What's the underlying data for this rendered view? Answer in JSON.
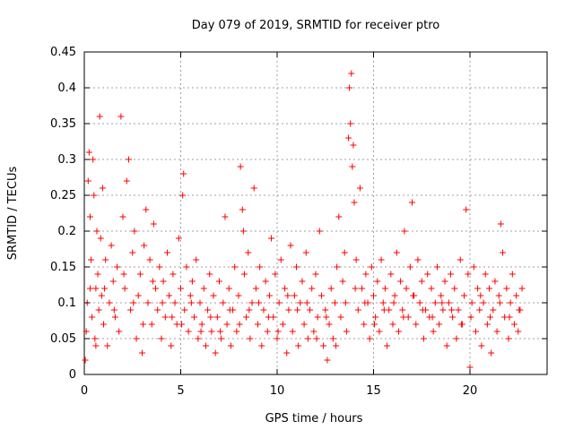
{
  "chart_data": {
    "type": "scatter",
    "title": "Day 079 of 2019, SRMTID for receiver ptro",
    "xlabel": "GPS time / hours",
    "ylabel": "SRMTID / TECUs",
    "xlim": [
      0,
      24
    ],
    "ylim": [
      0,
      0.45
    ],
    "x_ticks": [
      0,
      5,
      10,
      15,
      20
    ],
    "x_tick_labels": [
      "0",
      "5",
      "10",
      "15",
      "20"
    ],
    "y_ticks": [
      0,
      0.05,
      0.1,
      0.15,
      0.2,
      0.25,
      0.3,
      0.35,
      0.4,
      0.45
    ],
    "y_tick_labels": [
      "0",
      "0.05",
      "0.1",
      "0.15",
      "0.2",
      "0.25",
      "0.3",
      "0.35",
      "0.4",
      "0.45"
    ],
    "grid": true,
    "marker": "plus",
    "colors": {
      "marker": "#ff0000",
      "grid": "#a0a0a0",
      "axis": "#000000"
    },
    "series": [
      {
        "name": "SRMTID",
        "points": [
          [
            0.05,
            0.02
          ],
          [
            0.1,
            0.06
          ],
          [
            0.15,
            0.1
          ],
          [
            0.2,
            0.27
          ],
          [
            0.25,
            0.31
          ],
          [
            0.3,
            0.22
          ],
          [
            0.35,
            0.16
          ],
          [
            0.4,
            0.08
          ],
          [
            0.45,
            0.3
          ],
          [
            0.5,
            0.25
          ],
          [
            0.55,
            0.05
          ],
          [
            0.6,
            0.12
          ],
          [
            0.65,
            0.2
          ],
          [
            0.7,
            0.14
          ],
          [
            0.75,
            0.09
          ],
          [
            0.8,
            0.36
          ],
          [
            0.85,
            0.19
          ],
          [
            0.9,
            0.11
          ],
          [
            0.95,
            0.26
          ],
          [
            1.0,
            0.07
          ],
          [
            1.1,
            0.16
          ],
          [
            1.2,
            0.04
          ],
          [
            1.3,
            0.1
          ],
          [
            1.4,
            0.18
          ],
          [
            1.5,
            0.13
          ],
          [
            1.6,
            0.08
          ],
          [
            1.7,
            0.15
          ],
          [
            1.8,
            0.06
          ],
          [
            1.9,
            0.36
          ],
          [
            2.0,
            0.22
          ],
          [
            2.1,
            0.12
          ],
          [
            2.2,
            0.27
          ],
          [
            2.3,
            0.3
          ],
          [
            2.4,
            0.09
          ],
          [
            2.5,
            0.17
          ],
          [
            2.6,
            0.2
          ],
          [
            2.7,
            0.05
          ],
          [
            2.8,
            0.11
          ],
          [
            2.9,
            0.14
          ],
          [
            3.0,
            0.03
          ],
          [
            3.1,
            0.18
          ],
          [
            3.2,
            0.23
          ],
          [
            3.3,
            0.1
          ],
          [
            3.4,
            0.16
          ],
          [
            3.5,
            0.07
          ],
          [
            3.6,
            0.21
          ],
          [
            3.7,
            0.12
          ],
          [
            3.8,
            0.09
          ],
          [
            3.9,
            0.15
          ],
          [
            4.0,
            0.05
          ],
          [
            4.1,
            0.13
          ],
          [
            4.2,
            0.08
          ],
          [
            4.3,
            0.17
          ],
          [
            4.4,
            0.11
          ],
          [
            4.5,
            0.04
          ],
          [
            4.6,
            0.14
          ],
          [
            4.7,
            0.1
          ],
          [
            4.8,
            0.07
          ],
          [
            4.9,
            0.19
          ],
          [
            5.0,
            0.12
          ],
          [
            5.1,
            0.25
          ],
          [
            5.15,
            0.28
          ],
          [
            5.2,
            0.09
          ],
          [
            5.3,
            0.15
          ],
          [
            5.4,
            0.06
          ],
          [
            5.5,
            0.11
          ],
          [
            5.6,
            0.13
          ],
          [
            5.7,
            0.08
          ],
          [
            5.8,
            0.16
          ],
          [
            5.9,
            0.05
          ],
          [
            6.0,
            0.1
          ],
          [
            6.1,
            0.07
          ],
          [
            6.2,
            0.12
          ],
          [
            6.3,
            0.04
          ],
          [
            6.4,
            0.09
          ],
          [
            6.5,
            0.14
          ],
          [
            6.6,
            0.06
          ],
          [
            6.7,
            0.11
          ],
          [
            6.8,
            0.03
          ],
          [
            6.9,
            0.08
          ],
          [
            7.0,
            0.13
          ],
          [
            7.1,
            0.05
          ],
          [
            7.2,
            0.1
          ],
          [
            7.3,
            0.22
          ],
          [
            7.4,
            0.07
          ],
          [
            7.5,
            0.12
          ],
          [
            7.6,
            0.04
          ],
          [
            7.7,
            0.09
          ],
          [
            7.8,
            0.15
          ],
          [
            7.9,
            0.06
          ],
          [
            8.0,
            0.11
          ],
          [
            8.1,
            0.29
          ],
          [
            8.2,
            0.23
          ],
          [
            8.25,
            0.2
          ],
          [
            8.3,
            0.14
          ],
          [
            8.4,
            0.08
          ],
          [
            8.5,
            0.17
          ],
          [
            8.6,
            0.05
          ],
          [
            8.7,
            0.1
          ],
          [
            8.8,
            0.26
          ],
          [
            8.9,
            0.12
          ],
          [
            9.0,
            0.07
          ],
          [
            9.1,
            0.15
          ],
          [
            9.2,
            0.04
          ],
          [
            9.3,
            0.09
          ],
          [
            9.4,
            0.13
          ],
          [
            9.5,
            0.06
          ],
          [
            9.6,
            0.11
          ],
          [
            9.7,
            0.19
          ],
          [
            9.8,
            0.08
          ],
          [
            9.9,
            0.14
          ],
          [
            10.0,
            0.05
          ],
          [
            10.1,
            0.1
          ],
          [
            10.2,
            0.16
          ],
          [
            10.3,
            0.07
          ],
          [
            10.4,
            0.12
          ],
          [
            10.5,
            0.03
          ],
          [
            10.6,
            0.09
          ],
          [
            10.7,
            0.18
          ],
          [
            10.8,
            0.06
          ],
          [
            10.9,
            0.11
          ],
          [
            11.0,
            0.15
          ],
          [
            11.1,
            0.04
          ],
          [
            11.2,
            0.1
          ],
          [
            11.3,
            0.13
          ],
          [
            11.4,
            0.07
          ],
          [
            11.5,
            0.17
          ],
          [
            11.6,
            0.05
          ],
          [
            11.7,
            0.09
          ],
          [
            11.8,
            0.12
          ],
          [
            11.9,
            0.06
          ],
          [
            12.0,
            0.14
          ],
          [
            12.1,
            0.08
          ],
          [
            12.2,
            0.2
          ],
          [
            12.3,
            0.11
          ],
          [
            12.4,
            0.04
          ],
          [
            12.5,
            0.09
          ],
          [
            12.6,
            0.02
          ],
          [
            12.7,
            0.07
          ],
          [
            12.8,
            0.12
          ],
          [
            12.9,
            0.05
          ],
          [
            13.0,
            0.1
          ],
          [
            13.1,
            0.15
          ],
          [
            13.2,
            0.22
          ],
          [
            13.3,
            0.08
          ],
          [
            13.4,
            0.13
          ],
          [
            13.5,
            0.17
          ],
          [
            13.6,
            0.06
          ],
          [
            13.7,
            0.33
          ],
          [
            13.75,
            0.4
          ],
          [
            13.8,
            0.35
          ],
          [
            13.85,
            0.42
          ],
          [
            13.9,
            0.29
          ],
          [
            13.95,
            0.32
          ],
          [
            14.0,
            0.24
          ],
          [
            14.1,
            0.16
          ],
          [
            14.2,
            0.09
          ],
          [
            14.3,
            0.26
          ],
          [
            14.4,
            0.12
          ],
          [
            14.5,
            0.07
          ],
          [
            14.6,
            0.14
          ],
          [
            14.7,
            0.1
          ],
          [
            14.8,
            0.05
          ],
          [
            14.9,
            0.15
          ],
          [
            15.0,
            0.11
          ],
          [
            15.1,
            0.08
          ],
          [
            15.2,
            0.13
          ],
          [
            15.3,
            0.06
          ],
          [
            15.4,
            0.16
          ],
          [
            15.5,
            0.1
          ],
          [
            15.6,
            0.12
          ],
          [
            15.7,
            0.04
          ],
          [
            15.8,
            0.09
          ],
          [
            15.9,
            0.14
          ],
          [
            16.0,
            0.07
          ],
          [
            16.1,
            0.11
          ],
          [
            16.2,
            0.17
          ],
          [
            16.3,
            0.06
          ],
          [
            16.4,
            0.13
          ],
          [
            16.5,
            0.09
          ],
          [
            16.6,
            0.2
          ],
          [
            16.7,
            0.12
          ],
          [
            16.8,
            0.08
          ],
          [
            16.9,
            0.15
          ],
          [
            17.0,
            0.24
          ],
          [
            17.1,
            0.11
          ],
          [
            17.2,
            0.07
          ],
          [
            17.3,
            0.16
          ],
          [
            17.4,
            0.1
          ],
          [
            17.5,
            0.13
          ],
          [
            17.6,
            0.05
          ],
          [
            17.7,
            0.09
          ],
          [
            17.8,
            0.14
          ],
          [
            17.9,
            0.08
          ],
          [
            18.0,
            0.12
          ],
          [
            18.1,
            0.06
          ],
          [
            18.2,
            0.1
          ],
          [
            18.3,
            0.15
          ],
          [
            18.4,
            0.07
          ],
          [
            18.5,
            0.11
          ],
          [
            18.6,
            0.09
          ],
          [
            18.7,
            0.13
          ],
          [
            18.8,
            0.04
          ],
          [
            18.9,
            0.1
          ],
          [
            19.0,
            0.14
          ],
          [
            19.1,
            0.08
          ],
          [
            19.2,
            0.12
          ],
          [
            19.3,
            0.05
          ],
          [
            19.4,
            0.09
          ],
          [
            19.5,
            0.16
          ],
          [
            19.6,
            0.07
          ],
          [
            19.7,
            0.11
          ],
          [
            19.8,
            0.23
          ],
          [
            19.9,
            0.14
          ],
          [
            20.0,
            0.01
          ],
          [
            20.1,
            0.1
          ],
          [
            20.2,
            0.15
          ],
          [
            20.3,
            0.06
          ],
          [
            20.4,
            0.12
          ],
          [
            20.5,
            0.09
          ],
          [
            20.6,
            0.04
          ],
          [
            20.7,
            0.1
          ],
          [
            20.8,
            0.14
          ],
          [
            20.9,
            0.07
          ],
          [
            21.0,
            0.12
          ],
          [
            21.1,
            0.03
          ],
          [
            21.2,
            0.09
          ],
          [
            21.3,
            0.13
          ],
          [
            21.4,
            0.06
          ],
          [
            21.5,
            0.11
          ],
          [
            21.6,
            0.21
          ],
          [
            21.7,
            0.17
          ],
          [
            21.8,
            0.08
          ],
          [
            21.9,
            0.12
          ],
          [
            22.0,
            0.05
          ],
          [
            22.1,
            0.1
          ],
          [
            22.2,
            0.14
          ],
          [
            22.3,
            0.07
          ],
          [
            22.4,
            0.11
          ],
          [
            22.5,
            0.06
          ],
          [
            22.6,
            0.09
          ],
          [
            22.7,
            0.12
          ],
          [
            0.3,
            0.12
          ],
          [
            0.6,
            0.04
          ],
          [
            1.05,
            0.12
          ],
          [
            1.55,
            0.09
          ],
          [
            2.05,
            0.14
          ],
          [
            2.55,
            0.1
          ],
          [
            3.05,
            0.07
          ],
          [
            3.55,
            0.13
          ],
          [
            4.05,
            0.1
          ],
          [
            4.55,
            0.08
          ],
          [
            5.05,
            0.07
          ],
          [
            5.55,
            0.1
          ],
          [
            6.05,
            0.06
          ],
          [
            6.55,
            0.08
          ],
          [
            7.05,
            0.06
          ],
          [
            7.55,
            0.09
          ],
          [
            8.05,
            0.07
          ],
          [
            8.55,
            0.09
          ],
          [
            9.05,
            0.1
          ],
          [
            9.55,
            0.08
          ],
          [
            10.05,
            0.06
          ],
          [
            10.55,
            0.11
          ],
          [
            11.05,
            0.09
          ],
          [
            11.55,
            0.1
          ],
          [
            12.05,
            0.05
          ],
          [
            12.55,
            0.08
          ],
          [
            13.05,
            0.04
          ],
          [
            13.55,
            0.1
          ],
          [
            14.05,
            0.12
          ],
          [
            14.55,
            0.1
          ],
          [
            15.05,
            0.07
          ],
          [
            15.55,
            0.09
          ],
          [
            16.05,
            0.1
          ],
          [
            16.55,
            0.08
          ],
          [
            17.05,
            0.11
          ],
          [
            17.55,
            0.09
          ],
          [
            18.05,
            0.08
          ],
          [
            18.55,
            0.1
          ],
          [
            19.05,
            0.09
          ],
          [
            19.55,
            0.07
          ],
          [
            20.05,
            0.08
          ],
          [
            20.55,
            0.11
          ],
          [
            21.05,
            0.08
          ],
          [
            21.55,
            0.1
          ],
          [
            22.05,
            0.08
          ],
          [
            22.55,
            0.09
          ]
        ]
      }
    ]
  }
}
